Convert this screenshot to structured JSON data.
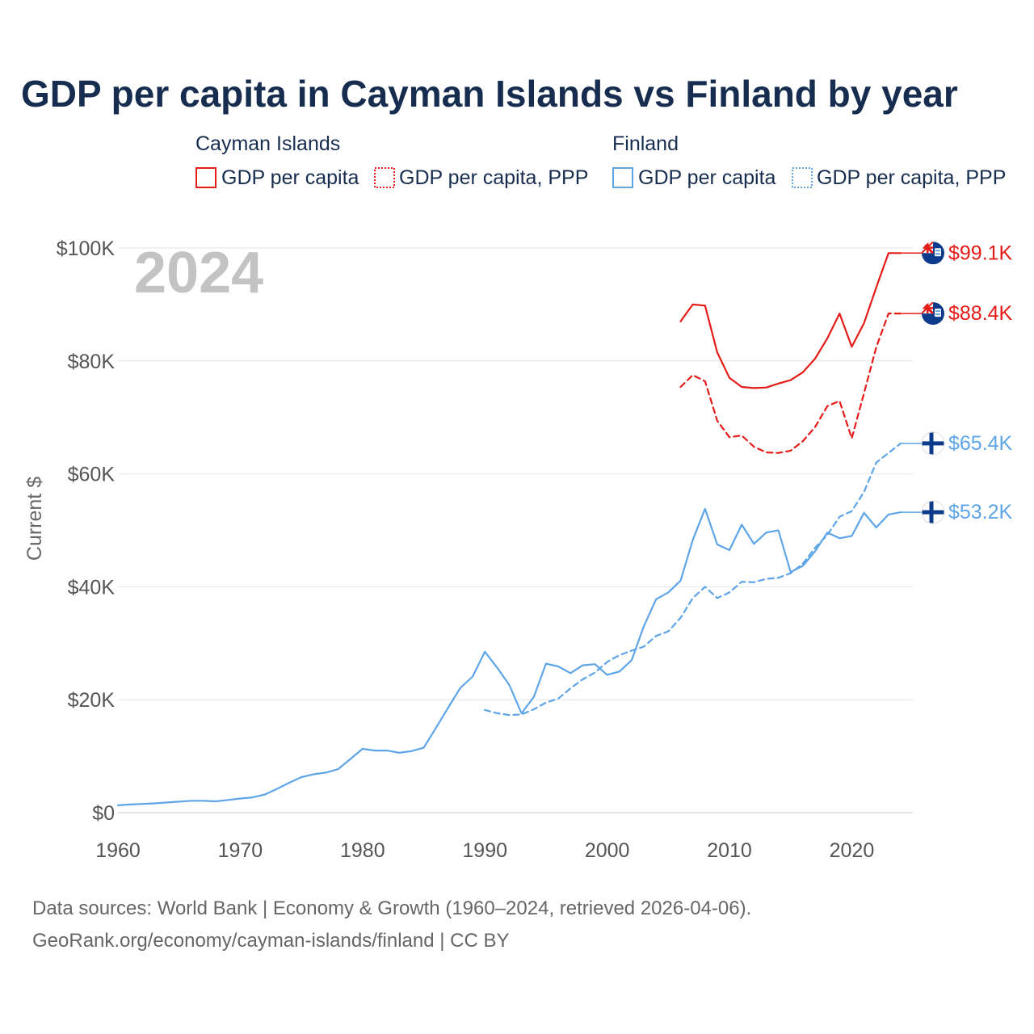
{
  "colors": {
    "cayman": "#e41b17",
    "finland": "#5ea5e8",
    "title": "#172d4f",
    "grid": "#e6e6e6",
    "year": "#c3c3c3"
  },
  "chart_data": {
    "type": "line",
    "title": "GDP per capita in Cayman Islands vs Finland by year",
    "year_label": "2024",
    "ylabel": "Current $",
    "xlim": [
      1960,
      2024
    ],
    "ylim": [
      0,
      100000
    ],
    "x_ticks": [
      1960,
      1970,
      1980,
      1990,
      2000,
      2010,
      2020
    ],
    "y_ticks": [
      {
        "value": 0,
        "label": "$0"
      },
      {
        "value": 20000,
        "label": "$20K"
      },
      {
        "value": 40000,
        "label": "$40K"
      },
      {
        "value": 60000,
        "label": "$60K"
      },
      {
        "value": 80000,
        "label": "$80K"
      },
      {
        "value": 100000,
        "label": "$100K"
      }
    ],
    "legend": [
      {
        "group": "Cayman Islands",
        "items": [
          "GDP per capita",
          "GDP per capita, PPP"
        ]
      },
      {
        "group": "Finland",
        "items": [
          "GDP per capita",
          "GDP per capita, PPP"
        ]
      }
    ],
    "series": [
      {
        "name": "Cayman Islands GDP per capita",
        "country": "Cayman Islands",
        "metric": "GDP per capita",
        "style": "solid",
        "end_label": "$99.1K",
        "x": [
          2006,
          2007,
          2008,
          2009,
          2010,
          2011,
          2012,
          2013,
          2014,
          2015,
          2016,
          2017,
          2018,
          2019,
          2020,
          2021,
          2022,
          2023,
          2024
        ],
        "values": [
          87000,
          90000,
          89800,
          81500,
          77000,
          75400,
          75200,
          75300,
          76000,
          76600,
          78000,
          80400,
          84000,
          88400,
          82500,
          86700,
          93000,
          99100,
          99100
        ]
      },
      {
        "name": "Cayman Islands GDP per capita, PPP",
        "country": "Cayman Islands",
        "metric": "GDP per capita, PPP",
        "style": "dashed",
        "end_label": "$88.4K",
        "x": [
          2006,
          2007,
          2008,
          2009,
          2010,
          2011,
          2012,
          2013,
          2014,
          2015,
          2016,
          2017,
          2018,
          2019,
          2020,
          2021,
          2022,
          2023,
          2024
        ],
        "values": [
          75400,
          77500,
          76400,
          69400,
          66500,
          66800,
          64800,
          63800,
          63700,
          64100,
          65800,
          68300,
          72000,
          72900,
          66300,
          74300,
          82400,
          88400,
          88400
        ]
      },
      {
        "name": "Finland GDP per capita",
        "country": "Finland",
        "metric": "GDP per capita",
        "style": "solid",
        "end_label": "$53.2K",
        "x": [
          1960,
          1961,
          1962,
          1963,
          1964,
          1965,
          1966,
          1967,
          1968,
          1969,
          1970,
          1971,
          1972,
          1973,
          1974,
          1975,
          1976,
          1977,
          1978,
          1979,
          1980,
          1981,
          1982,
          1983,
          1984,
          1985,
          1986,
          1987,
          1988,
          1989,
          1990,
          1991,
          1992,
          1993,
          1994,
          1995,
          1996,
          1997,
          1998,
          1999,
          2000,
          2001,
          2002,
          2003,
          2004,
          2005,
          2006,
          2007,
          2008,
          2009,
          2010,
          2011,
          2012,
          2013,
          2014,
          2015,
          2016,
          2017,
          2018,
          2019,
          2020,
          2021,
          2022,
          2023,
          2024
        ],
        "values": [
          1300,
          1450,
          1550,
          1650,
          1800,
          1950,
          2100,
          2100,
          2000,
          2250,
          2500,
          2700,
          3200,
          4200,
          5300,
          6300,
          6800,
          7100,
          7700,
          9500,
          11300,
          11000,
          11000,
          10600,
          10900,
          11500,
          15000,
          18600,
          22100,
          24100,
          28500,
          25700,
          22600,
          17600,
          20500,
          26400,
          25900,
          24700,
          26100,
          26300,
          24400,
          25000,
          27000,
          33000,
          37800,
          39000,
          41100,
          48300,
          53800,
          47500,
          46500,
          51000,
          47600,
          49600,
          50000,
          42600,
          43700,
          46300,
          49600,
          48600,
          49000,
          53100,
          50500,
          52800,
          53200
        ]
      },
      {
        "name": "Finland GDP per capita, PPP",
        "country": "Finland",
        "metric": "GDP per capita, PPP",
        "style": "dashed",
        "end_label": "$65.4K",
        "x": [
          1990,
          1991,
          1992,
          1993,
          1994,
          1995,
          1996,
          1997,
          1998,
          1999,
          2000,
          2001,
          2002,
          2003,
          2004,
          2005,
          2006,
          2007,
          2008,
          2009,
          2010,
          2011,
          2012,
          2013,
          2014,
          2015,
          2016,
          2017,
          2018,
          2019,
          2020,
          2021,
          2022,
          2023,
          2024
        ],
        "values": [
          18200,
          17600,
          17300,
          17400,
          18300,
          19500,
          20200,
          22000,
          23600,
          24800,
          26700,
          27900,
          28700,
          29400,
          31300,
          32100,
          34500,
          38000,
          40000,
          38000,
          39000,
          40900,
          40800,
          41400,
          41600,
          42400,
          44100,
          46900,
          49200,
          52400,
          53400,
          56800,
          62000,
          63700,
          65400
        ]
      }
    ],
    "sources": [
      "Data sources: World Bank | Economy & Growth (1960–2024, retrieved 2026-04-06).",
      "GeoRank.org/economy/cayman-islands/finland | CC BY"
    ]
  }
}
